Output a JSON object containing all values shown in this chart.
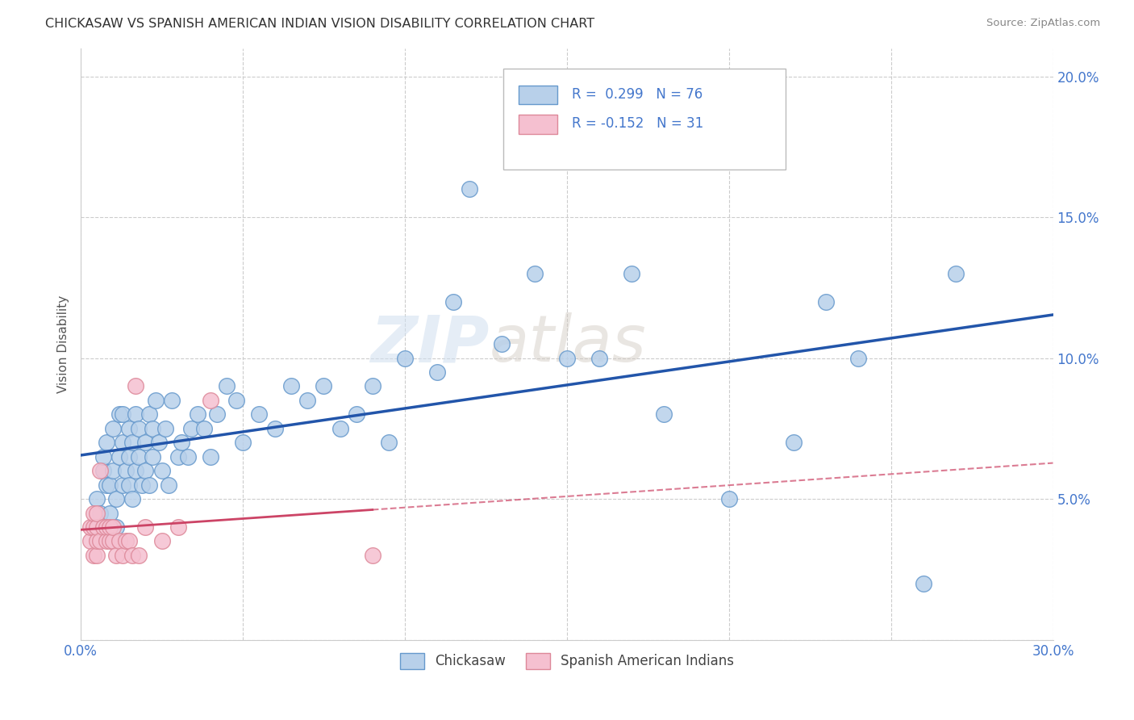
{
  "title": "CHICKASAW VS SPANISH AMERICAN INDIAN VISION DISABILITY CORRELATION CHART",
  "source": "Source: ZipAtlas.com",
  "ylabel": "Vision Disability",
  "xlim": [
    0.0,
    0.3
  ],
  "ylim": [
    0.0,
    0.21
  ],
  "xticks": [
    0.0,
    0.05,
    0.1,
    0.15,
    0.2,
    0.25,
    0.3
  ],
  "yticks": [
    0.0,
    0.05,
    0.1,
    0.15,
    0.2
  ],
  "r_chickasaw": 0.299,
  "n_chickasaw": 76,
  "r_spanish": -0.152,
  "n_spanish": 31,
  "watermark_zip": "ZIP",
  "watermark_atlas": "atlas",
  "bg_color": "#ffffff",
  "grid_color": "#cccccc",
  "chickasaw_color": "#b8d0ea",
  "chickasaw_edge_color": "#6699cc",
  "chickasaw_line_color": "#2255aa",
  "spanish_color": "#f5c0d0",
  "spanish_edge_color": "#dd8899",
  "spanish_line_color": "#cc4466",
  "label_color": "#4477cc",
  "title_color": "#333333",
  "source_color": "#888888",
  "ylabel_color": "#555555",
  "chickasaw_scatter_x": [
    0.005,
    0.006,
    0.007,
    0.007,
    0.008,
    0.008,
    0.009,
    0.009,
    0.01,
    0.01,
    0.011,
    0.011,
    0.012,
    0.012,
    0.013,
    0.013,
    0.013,
    0.014,
    0.015,
    0.015,
    0.015,
    0.016,
    0.016,
    0.017,
    0.017,
    0.018,
    0.018,
    0.019,
    0.02,
    0.02,
    0.021,
    0.021,
    0.022,
    0.022,
    0.023,
    0.024,
    0.025,
    0.026,
    0.027,
    0.028,
    0.03,
    0.031,
    0.033,
    0.034,
    0.036,
    0.038,
    0.04,
    0.042,
    0.045,
    0.048,
    0.05,
    0.055,
    0.06,
    0.065,
    0.07,
    0.075,
    0.08,
    0.085,
    0.09,
    0.095,
    0.1,
    0.11,
    0.12,
    0.13,
    0.14,
    0.15,
    0.16,
    0.17,
    0.18,
    0.2,
    0.22,
    0.23,
    0.24,
    0.26,
    0.27,
    0.115
  ],
  "chickasaw_scatter_y": [
    0.05,
    0.045,
    0.06,
    0.065,
    0.055,
    0.07,
    0.045,
    0.055,
    0.06,
    0.075,
    0.04,
    0.05,
    0.065,
    0.08,
    0.055,
    0.07,
    0.08,
    0.06,
    0.055,
    0.065,
    0.075,
    0.05,
    0.07,
    0.06,
    0.08,
    0.065,
    0.075,
    0.055,
    0.06,
    0.07,
    0.055,
    0.08,
    0.065,
    0.075,
    0.085,
    0.07,
    0.06,
    0.075,
    0.055,
    0.085,
    0.065,
    0.07,
    0.065,
    0.075,
    0.08,
    0.075,
    0.065,
    0.08,
    0.09,
    0.085,
    0.07,
    0.08,
    0.075,
    0.09,
    0.085,
    0.09,
    0.075,
    0.08,
    0.09,
    0.07,
    0.1,
    0.095,
    0.16,
    0.105,
    0.13,
    0.1,
    0.1,
    0.13,
    0.08,
    0.05,
    0.07,
    0.12,
    0.1,
    0.02,
    0.13,
    0.12
  ],
  "spanish_scatter_x": [
    0.003,
    0.003,
    0.004,
    0.004,
    0.004,
    0.005,
    0.005,
    0.005,
    0.005,
    0.006,
    0.006,
    0.007,
    0.008,
    0.008,
    0.009,
    0.009,
    0.01,
    0.01,
    0.011,
    0.012,
    0.013,
    0.014,
    0.015,
    0.016,
    0.017,
    0.018,
    0.02,
    0.025,
    0.03,
    0.04,
    0.09
  ],
  "spanish_scatter_y": [
    0.035,
    0.04,
    0.03,
    0.04,
    0.045,
    0.03,
    0.035,
    0.04,
    0.045,
    0.035,
    0.06,
    0.04,
    0.035,
    0.04,
    0.035,
    0.04,
    0.035,
    0.04,
    0.03,
    0.035,
    0.03,
    0.035,
    0.035,
    0.03,
    0.09,
    0.03,
    0.04,
    0.035,
    0.04,
    0.085,
    0.03
  ]
}
